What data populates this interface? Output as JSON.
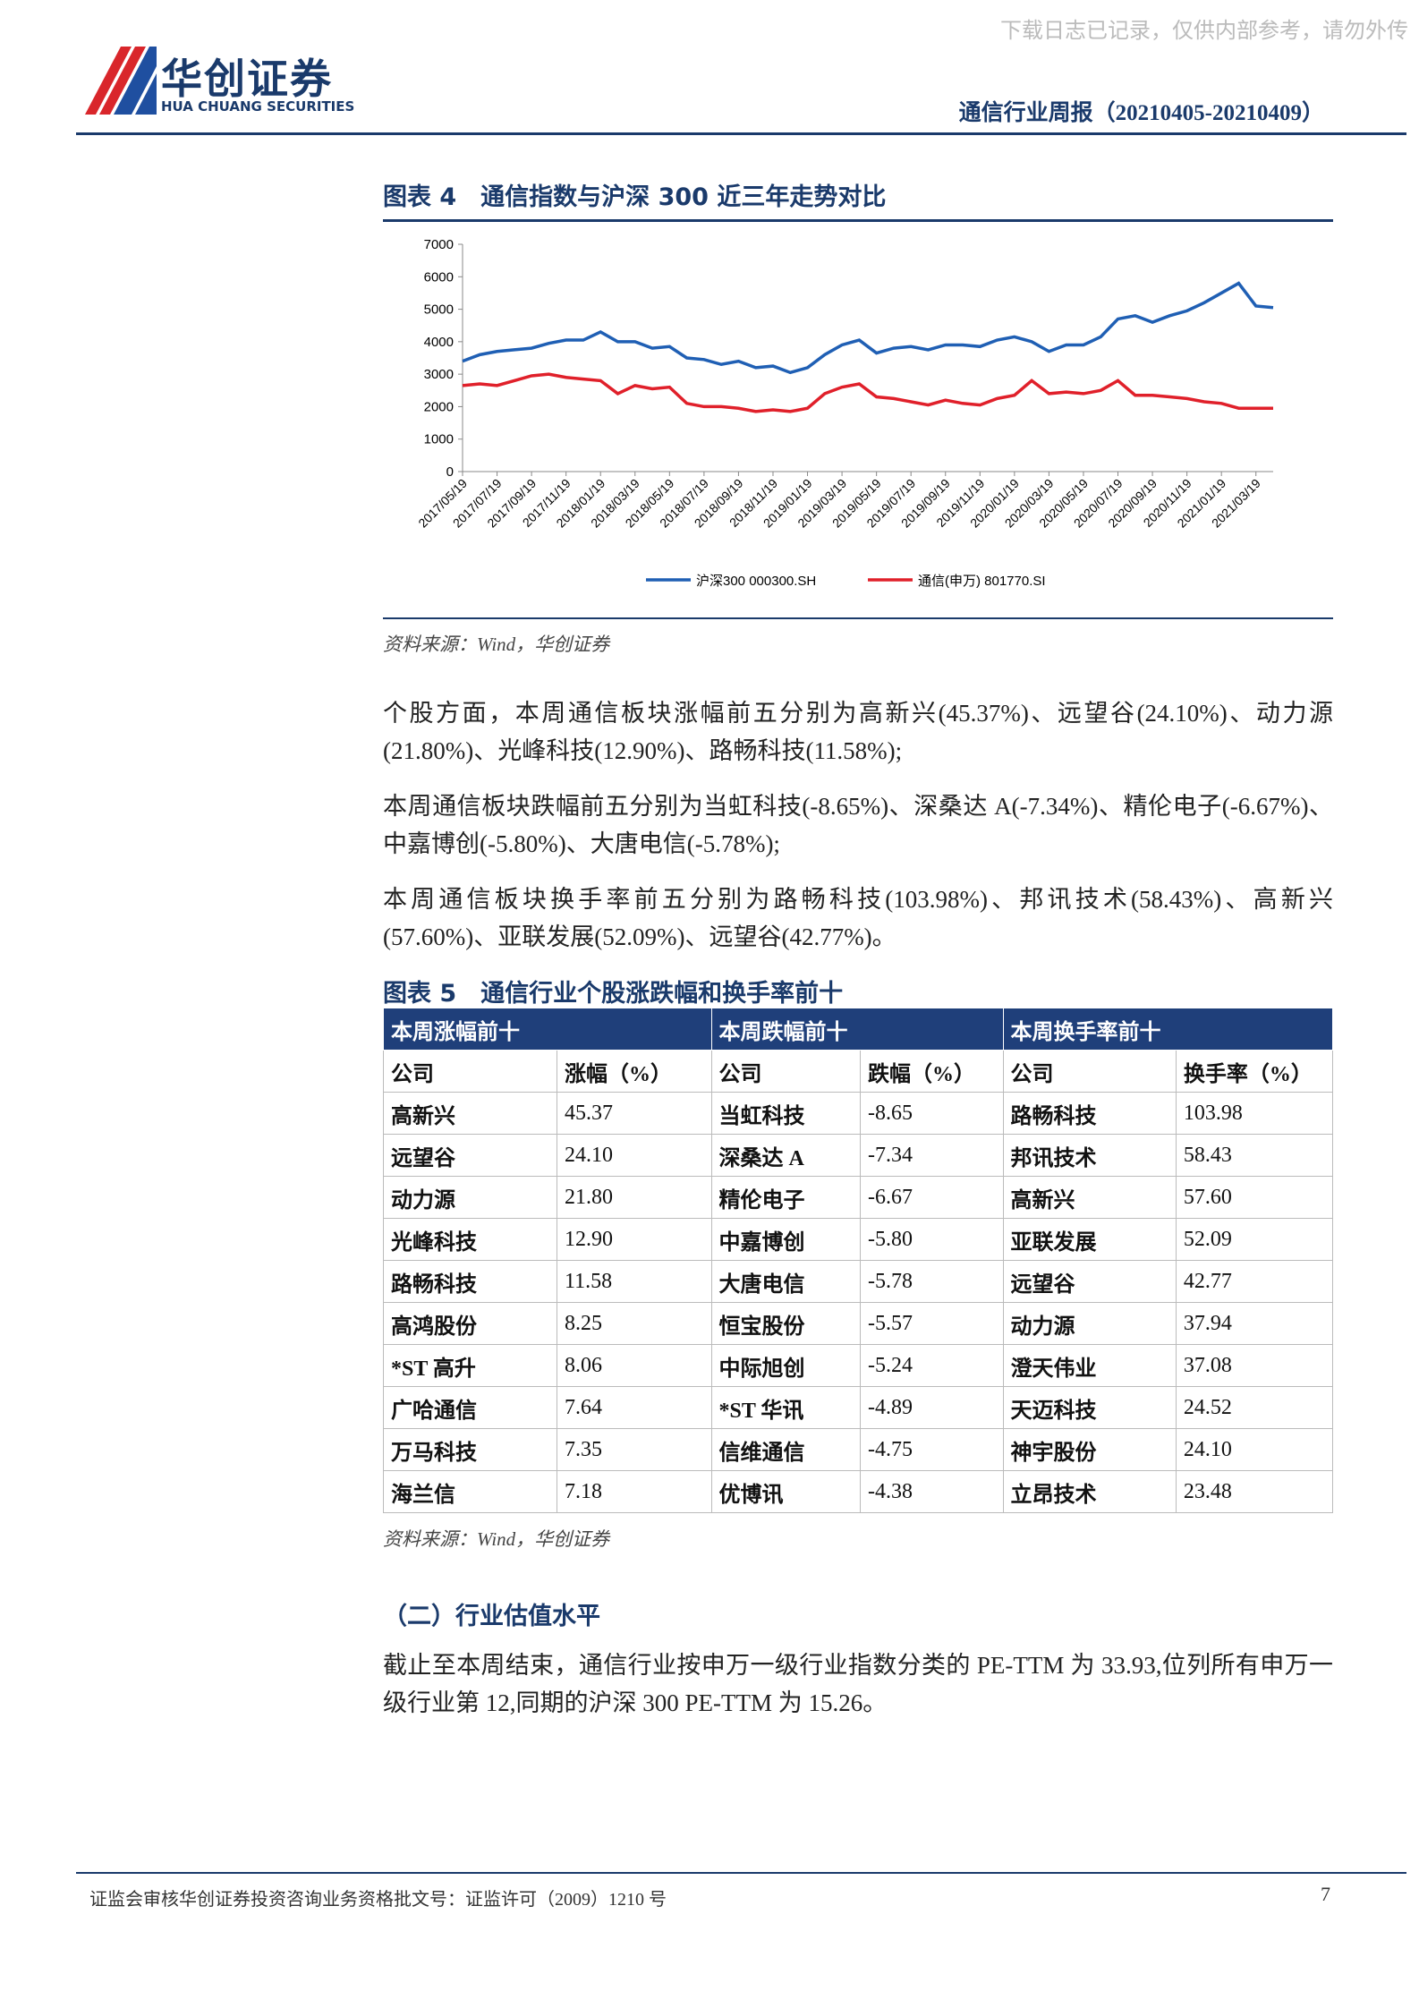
{
  "header": {
    "watermark": "下载日志已记录，仅供内部参考，请勿外传",
    "logo_cn": "华创证券",
    "logo_en": "HUA CHUANG SECURITIES",
    "report_title": "通信行业周报（20210405-20210409）"
  },
  "figure4": {
    "title": "图表 4　通信指数与沪深 300 近三年走势对比",
    "source": "资料来源：Wind，华创证券",
    "chart_data": {
      "type": "line",
      "grid": false,
      "ylim": [
        0,
        7000
      ],
      "yticks": [
        0,
        1000,
        2000,
        3000,
        4000,
        5000,
        6000,
        7000
      ],
      "categories": [
        "2017/05/19",
        null,
        "2017/07/19",
        null,
        "2017/09/19",
        null,
        "2017/11/19",
        null,
        "2018/01/19",
        null,
        "2018/03/19",
        null,
        "2018/05/19",
        null,
        "2018/07/19",
        null,
        "2018/09/19",
        null,
        "2018/11/19",
        null,
        "2019/01/19",
        null,
        "2019/03/19",
        null,
        "2019/05/19",
        null,
        "2019/07/19",
        null,
        "2019/09/19",
        null,
        "2019/11/19",
        null,
        "2020/01/19",
        null,
        "2020/03/19",
        null,
        "2020/05/19",
        null,
        "2020/07/19",
        null,
        "2020/09/19",
        null,
        "2020/11/19",
        null,
        "2021/01/19",
        null,
        "2021/03/19",
        null
      ],
      "series": [
        {
          "name": "沪深300 000300.SH",
          "color": "#1f5fb4",
          "values": [
            3400,
            3600,
            3700,
            3750,
            3800,
            3950,
            4050,
            4050,
            4300,
            4000,
            4000,
            3800,
            3850,
            3500,
            3450,
            3300,
            3400,
            3200,
            3250,
            3050,
            3200,
            3600,
            3900,
            4050,
            3650,
            3800,
            3850,
            3750,
            3900,
            3900,
            3850,
            4050,
            4150,
            4000,
            3700,
            3900,
            3900,
            4150,
            4700,
            4800,
            4600,
            4800,
            4950,
            5200,
            5500,
            5800,
            5100,
            5050
          ]
        },
        {
          "name": "通信(申万) 801770.SI",
          "color": "#e0202a",
          "values": [
            2650,
            2700,
            2650,
            2800,
            2950,
            3000,
            2900,
            2850,
            2800,
            2400,
            2650,
            2550,
            2600,
            2100,
            2000,
            2000,
            1950,
            1850,
            1900,
            1850,
            1950,
            2400,
            2600,
            2700,
            2300,
            2250,
            2150,
            2050,
            2200,
            2100,
            2050,
            2250,
            2350,
            2800,
            2400,
            2450,
            2400,
            2500,
            2800,
            2350,
            2350,
            2300,
            2250,
            2150,
            2100,
            1950,
            1950,
            1950
          ]
        }
      ]
    }
  },
  "paragraphs": [
    "个股方面，本周通信板块涨幅前五分别为高新兴(45.37%)、远望谷(24.10%)、动力源(21.80%)、光峰科技(12.90%)、路畅科技(11.58%);",
    "本周通信板块跌幅前五分别为当虹科技(-8.65%)、深桑达 A(-7.34%)、精伦电子(-6.67%)、中嘉博创(-5.80%)、大唐电信(-5.78%);",
    "本周通信板块换手率前五分别为路畅科技(103.98%)、邦讯技术(58.43%)、高新兴(57.60%)、亚联发展(52.09%)、远望谷(42.77%)。"
  ],
  "figure5": {
    "title": "图表 5　通信行业个股涨跌幅和换手率前十",
    "source": "资料来源：Wind，华创证券",
    "table": {
      "groups": [
        "本周涨幅前十",
        "本周跌幅前十",
        "本周换手率前十"
      ],
      "columns": [
        "公司",
        "涨幅（%）",
        "公司",
        "跌幅（%）",
        "公司",
        "换手率（%）"
      ],
      "rows": [
        [
          "高新兴",
          "45.37",
          "当虹科技",
          "-8.65",
          "路畅科技",
          "103.98"
        ],
        [
          "远望谷",
          "24.10",
          "深桑达 A",
          "-7.34",
          "邦讯技术",
          "58.43"
        ],
        [
          "动力源",
          "21.80",
          "精伦电子",
          "-6.67",
          "高新兴",
          "57.60"
        ],
        [
          "光峰科技",
          "12.90",
          "中嘉博创",
          "-5.80",
          "亚联发展",
          "52.09"
        ],
        [
          "路畅科技",
          "11.58",
          "大唐电信",
          "-5.78",
          "远望谷",
          "42.77"
        ],
        [
          "高鸿股份",
          "8.25",
          "恒宝股份",
          "-5.57",
          "动力源",
          "37.94"
        ],
        [
          "*ST 高升",
          "8.06",
          "中际旭创",
          "-5.24",
          "澄天伟业",
          "37.08"
        ],
        [
          "广哈通信",
          "7.64",
          "*ST 华讯",
          "-4.89",
          "天迈科技",
          "24.52"
        ],
        [
          "万马科技",
          "7.35",
          "信维通信",
          "-4.75",
          "神宇股份",
          "24.10"
        ],
        [
          "海兰信",
          "7.18",
          "优博讯",
          "-4.38",
          "立昂技术",
          "23.48"
        ]
      ]
    }
  },
  "section": {
    "heading": "（二）行业估值水平",
    "paragraph": "截止至本周结束，通信行业按申万一级行业指数分类的 PE-TTM 为 33.93,位列所有申万一级行业第 12,同期的沪深 300 PE-TTM 为 15.26。"
  },
  "footer": {
    "note": "证监会审核华创证券投资咨询业务资格批文号：证监许可（2009）1210 号",
    "page": "7"
  }
}
